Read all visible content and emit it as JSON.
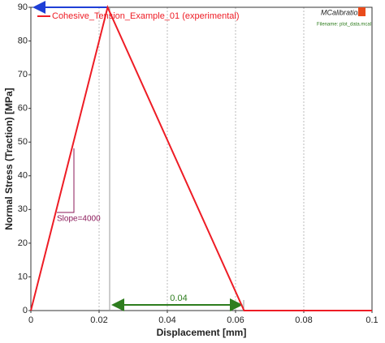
{
  "chart_data": {
    "type": "line",
    "x_label": "Displacement [mm]",
    "y_label": "Normal Stress (Traction) [MPa]",
    "x": [
      0,
      0.0225,
      0.0625,
      0.1
    ],
    "series": [
      {
        "name": "Cohesive_Tension_Example_01 (experimental)",
        "color": "#ee1c25",
        "values": [
          0,
          90,
          0,
          0
        ]
      }
    ],
    "xlim": [
      0,
      0.1
    ],
    "xticks": [
      0,
      0.02,
      0.04,
      0.06,
      0.08,
      0.1
    ],
    "ylim": [
      0,
      90
    ],
    "yticks": [
      0,
      10,
      20,
      30,
      40,
      50,
      60,
      70,
      80,
      90
    ],
    "grid": true,
    "legend": "top-left",
    "annotations": [
      {
        "text": "Slope=4000"
      },
      {
        "text": "0.04"
      }
    ]
  },
  "watermark": {
    "brand": "MCalibration",
    "filename": "Filename: plot_data.mcal"
  }
}
